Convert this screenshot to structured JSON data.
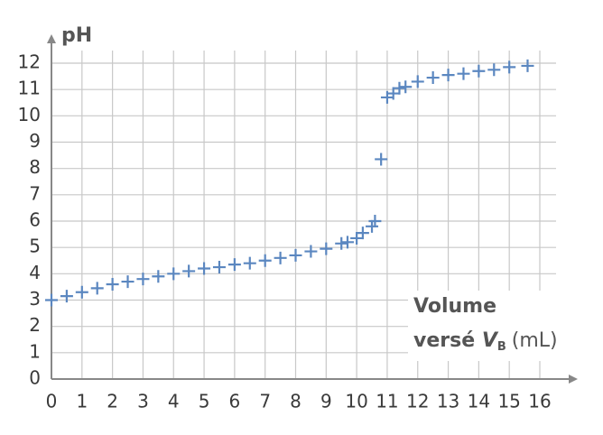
{
  "chart_data": {
    "type": "scatter",
    "y_label": "pH",
    "x_label": {
      "line1": "Volume",
      "line2_start": "versé",
      "variable": "V",
      "subscript": "B",
      "unit": "(mL)"
    },
    "x": [
      0,
      0.5,
      1,
      1.5,
      2,
      2.5,
      3,
      3.5,
      4,
      4.5,
      5,
      5.5,
      6,
      6.5,
      7,
      7.5,
      8,
      8.5,
      9,
      9.5,
      9.7,
      10,
      10.2,
      10.5,
      10.6,
      10.8,
      11,
      11.2,
      11.4,
      11.6,
      12,
      12.5,
      13,
      13.5,
      14,
      14.5,
      15,
      15.6
    ],
    "values": [
      3.0,
      3.15,
      3.3,
      3.45,
      3.6,
      3.7,
      3.8,
      3.9,
      4.0,
      4.1,
      4.2,
      4.25,
      4.35,
      4.4,
      4.5,
      4.6,
      4.7,
      4.85,
      4.95,
      5.15,
      5.2,
      5.35,
      5.55,
      5.8,
      6.0,
      8.35,
      10.7,
      10.85,
      11.05,
      11.1,
      11.3,
      11.45,
      11.55,
      11.6,
      11.7,
      11.75,
      11.85,
      11.9
    ],
    "color": "#5b87c0",
    "xlim": [
      0,
      16
    ],
    "ylim": [
      0,
      12
    ],
    "xticks": [
      0,
      1,
      2,
      3,
      4,
      5,
      6,
      7,
      8,
      9,
      10,
      11,
      12,
      13,
      14,
      15,
      16
    ],
    "yticks": [
      0,
      1,
      2,
      3,
      4,
      5,
      6,
      7,
      8,
      9,
      10,
      11,
      12
    ],
    "grid": true
  }
}
